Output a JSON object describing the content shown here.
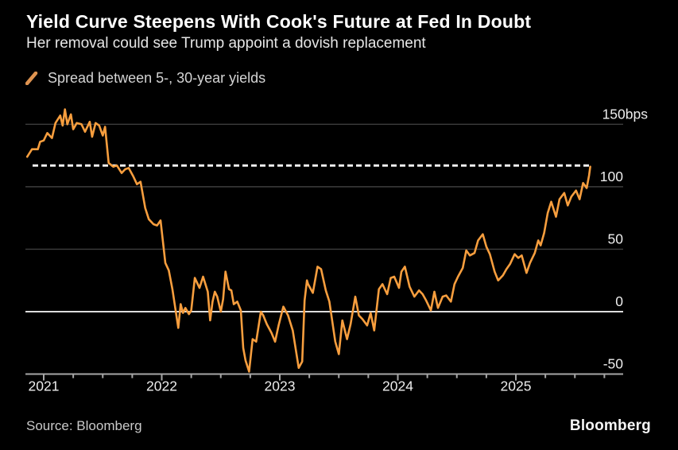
{
  "header": {
    "title": "Yield Curve Steepens With Cook's Future at Fed In Doubt",
    "subtitle": "Her removal could see Trump appoint a dovish replacement"
  },
  "legend": {
    "label": "Spread between 5-, 30-year yields",
    "marker_icon": "diagonal-line-swatch",
    "marker_color": "#de9350"
  },
  "footer": {
    "source": "Source: Bloomberg",
    "brand": "Bloomberg"
  },
  "colors": {
    "background": "#000000",
    "series_line": "#f79e3e",
    "grid_line": "#3d3d3d",
    "zero_line": "#dcdcdc",
    "axis_line": "#a6a6a6",
    "tick": "#a6a6a6",
    "axis_label": "#ededed",
    "reference_dashed": "#ffffff"
  },
  "chart_data": {
    "type": "line",
    "title": "Yield Curve Steepens With Cook's Future at Fed In Doubt",
    "subtitle": "Her removal could see Trump appoint a dovish replacement",
    "unit": "bps",
    "legend_position": "top-left",
    "grid": "horizontal-only",
    "x_axis": {
      "range_years": [
        2020.845,
        2025.909
      ],
      "major_ticks": [
        2021,
        2022,
        2023,
        2024,
        2025
      ],
      "major_tick_labels": [
        "2021",
        "2022",
        "2023",
        "2024",
        "2025"
      ],
      "minor_tick_interval_years": 0.25
    },
    "y_axis": {
      "side": "right",
      "range": [
        -50,
        165
      ],
      "ticks": [
        {
          "value": 150,
          "label": "150bps"
        },
        {
          "value": 100,
          "label": "100"
        },
        {
          "value": 50,
          "label": "50"
        },
        {
          "value": 0,
          "label": "0"
        },
        {
          "value": -50,
          "label": "-50"
        }
      ],
      "zero_line_emphasized": true,
      "bottom_axis_value": -50
    },
    "reference_line": {
      "style": "dashed",
      "color": "#ffffff",
      "value_bps": 117,
      "meaning": "current spread level"
    },
    "series": [
      {
        "name": "Spread between 5-, 30-year yields",
        "color": "#f79e3e",
        "points": [
          [
            2020.86,
            124
          ],
          [
            2020.9,
            130
          ],
          [
            2020.95,
            130
          ],
          [
            2020.97,
            136
          ],
          [
            2021.0,
            137
          ],
          [
            2021.03,
            143
          ],
          [
            2021.07,
            139
          ],
          [
            2021.1,
            151
          ],
          [
            2021.14,
            157
          ],
          [
            2021.16,
            149
          ],
          [
            2021.18,
            162
          ],
          [
            2021.2,
            150
          ],
          [
            2021.23,
            158
          ],
          [
            2021.25,
            146
          ],
          [
            2021.28,
            151
          ],
          [
            2021.32,
            150
          ],
          [
            2021.35,
            144
          ],
          [
            2021.39,
            152
          ],
          [
            2021.41,
            140
          ],
          [
            2021.44,
            151
          ],
          [
            2021.47,
            149
          ],
          [
            2021.5,
            141
          ],
          [
            2021.52,
            148
          ],
          [
            2021.55,
            119
          ],
          [
            2021.59,
            116
          ],
          [
            2021.62,
            117
          ],
          [
            2021.66,
            111
          ],
          [
            2021.69,
            114
          ],
          [
            2021.72,
            115
          ],
          [
            2021.76,
            108
          ],
          [
            2021.79,
            102
          ],
          [
            2021.82,
            104
          ],
          [
            2021.86,
            83
          ],
          [
            2021.89,
            74
          ],
          [
            2021.93,
            70
          ],
          [
            2021.96,
            69
          ],
          [
            2021.99,
            73
          ],
          [
            2022.03,
            39
          ],
          [
            2022.06,
            33
          ],
          [
            2022.09,
            18
          ],
          [
            2022.14,
            -13
          ],
          [
            2022.16,
            6
          ],
          [
            2022.18,
            -1
          ],
          [
            2022.2,
            3
          ],
          [
            2022.23,
            -2
          ],
          [
            2022.25,
            1
          ],
          [
            2022.28,
            27
          ],
          [
            2022.32,
            19
          ],
          [
            2022.35,
            28
          ],
          [
            2022.39,
            16
          ],
          [
            2022.41,
            -7
          ],
          [
            2022.43,
            8
          ],
          [
            2022.45,
            16
          ],
          [
            2022.47,
            12
          ],
          [
            2022.5,
            0
          ],
          [
            2022.52,
            10
          ],
          [
            2022.54,
            32
          ],
          [
            2022.57,
            18
          ],
          [
            2022.59,
            17
          ],
          [
            2022.61,
            6
          ],
          [
            2022.64,
            8
          ],
          [
            2022.67,
            1
          ],
          [
            2022.69,
            -29
          ],
          [
            2022.71,
            -39
          ],
          [
            2022.74,
            -48
          ],
          [
            2022.77,
            -22
          ],
          [
            2022.8,
            -24
          ],
          [
            2022.84,
            0
          ],
          [
            2022.86,
            -3
          ],
          [
            2022.89,
            -10
          ],
          [
            2022.93,
            -17
          ],
          [
            2022.96,
            -24
          ],
          [
            2022.99,
            -11
          ],
          [
            2023.03,
            4
          ],
          [
            2023.07,
            -3
          ],
          [
            2023.11,
            -15
          ],
          [
            2023.16,
            -45
          ],
          [
            2023.19,
            -40
          ],
          [
            2023.21,
            9
          ],
          [
            2023.23,
            25
          ],
          [
            2023.24,
            22
          ],
          [
            2023.28,
            15
          ],
          [
            2023.32,
            36
          ],
          [
            2023.35,
            34
          ],
          [
            2023.39,
            17
          ],
          [
            2023.42,
            8
          ],
          [
            2023.47,
            -24
          ],
          [
            2023.5,
            -34
          ],
          [
            2023.53,
            -7
          ],
          [
            2023.57,
            -22
          ],
          [
            2023.6,
            -10
          ],
          [
            2023.64,
            12
          ],
          [
            2023.67,
            -3
          ],
          [
            2023.7,
            -6
          ],
          [
            2023.74,
            -11
          ],
          [
            2023.77,
            -1
          ],
          [
            2023.8,
            -15
          ],
          [
            2023.84,
            18
          ],
          [
            2023.87,
            22
          ],
          [
            2023.91,
            14
          ],
          [
            2023.94,
            27
          ],
          [
            2023.97,
            28
          ],
          [
            2024.01,
            19
          ],
          [
            2024.03,
            32
          ],
          [
            2024.06,
            36
          ],
          [
            2024.1,
            20
          ],
          [
            2024.14,
            12
          ],
          [
            2024.18,
            17
          ],
          [
            2024.21,
            14
          ],
          [
            2024.24,
            9
          ],
          [
            2024.28,
            1
          ],
          [
            2024.31,
            16
          ],
          [
            2024.34,
            3
          ],
          [
            2024.38,
            12
          ],
          [
            2024.41,
            13
          ],
          [
            2024.45,
            8
          ],
          [
            2024.48,
            22
          ],
          [
            2024.51,
            28
          ],
          [
            2024.55,
            35
          ],
          [
            2024.58,
            49
          ],
          [
            2024.61,
            45
          ],
          [
            2024.65,
            47
          ],
          [
            2024.68,
            57
          ],
          [
            2024.72,
            62
          ],
          [
            2024.75,
            52
          ],
          [
            2024.78,
            46
          ],
          [
            2024.82,
            32
          ],
          [
            2024.85,
            25
          ],
          [
            2024.89,
            29
          ],
          [
            2024.92,
            34
          ],
          [
            2024.95,
            38
          ],
          [
            2024.99,
            46
          ],
          [
            2025.02,
            43
          ],
          [
            2025.05,
            45
          ],
          [
            2025.09,
            31
          ],
          [
            2025.12,
            39
          ],
          [
            2025.16,
            47
          ],
          [
            2025.19,
            57
          ],
          [
            2025.21,
            53
          ],
          [
            2025.24,
            63
          ],
          [
            2025.27,
            79
          ],
          [
            2025.3,
            88
          ],
          [
            2025.34,
            76
          ],
          [
            2025.37,
            90
          ],
          [
            2025.41,
            95
          ],
          [
            2025.44,
            85
          ],
          [
            2025.47,
            92
          ],
          [
            2025.51,
            97
          ],
          [
            2025.54,
            90
          ],
          [
            2025.57,
            103
          ],
          [
            2025.6,
            99
          ],
          [
            2025.62,
            109
          ],
          [
            2025.63,
            116
          ]
        ]
      }
    ]
  }
}
